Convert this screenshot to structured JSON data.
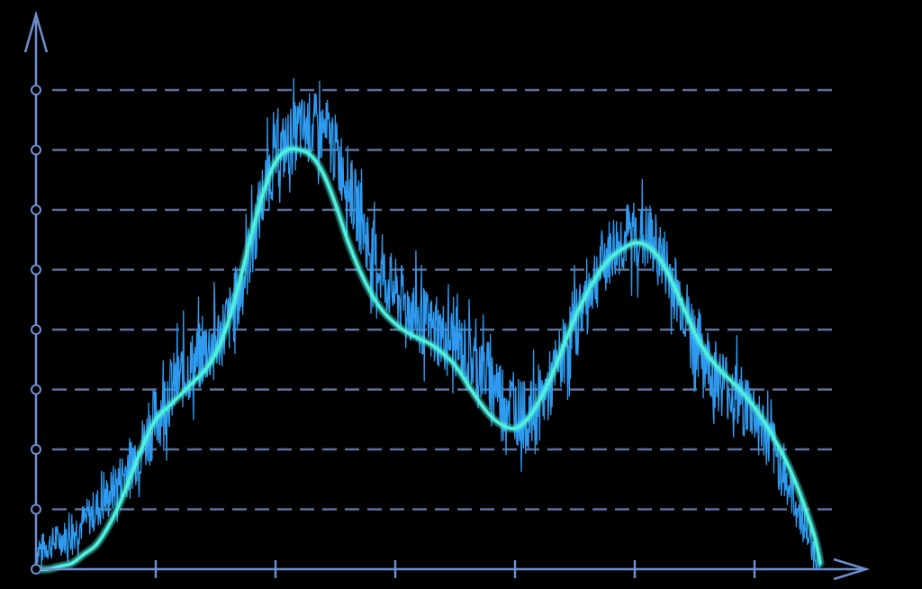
{
  "chart_data": {
    "type": "line",
    "title": "",
    "xlabel": "",
    "ylabel": "",
    "xlim": [
      0,
      6.5
    ],
    "ylim": [
      0,
      8
    ],
    "grid": true,
    "x_ticks": [
      1,
      2,
      3,
      4,
      5,
      6
    ],
    "y_ticks": [
      1,
      2,
      3,
      4,
      5,
      6,
      7,
      8
    ],
    "series": [
      {
        "style": "noisy",
        "color": "#2f9bf0",
        "noise_amplitude": 0.6,
        "x": [
          0.0,
          0.1,
          0.2,
          0.3,
          0.4,
          0.5,
          0.6,
          0.7,
          0.8,
          0.9,
          1.0,
          1.1,
          1.2,
          1.3,
          1.4,
          1.5,
          1.6,
          1.7,
          1.8,
          1.9,
          2.0,
          2.1,
          2.2,
          2.3,
          2.4,
          2.5,
          2.6,
          2.7,
          2.8,
          2.9,
          3.0,
          3.1,
          3.2,
          3.3,
          3.4,
          3.5,
          3.6,
          3.7,
          3.8,
          3.9,
          4.0,
          4.1,
          4.2,
          4.3,
          4.4,
          4.5,
          4.6,
          4.7,
          4.8,
          4.9,
          5.0,
          5.1,
          5.2,
          5.3,
          5.4,
          5.5,
          5.6,
          5.7,
          5.8,
          5.9,
          6.0,
          6.1,
          6.2,
          6.3,
          6.4,
          6.5,
          6.55
        ],
        "y": [
          0.3,
          0.4,
          0.5,
          0.6,
          0.8,
          1.0,
          1.2,
          1.5,
          1.8,
          2.1,
          2.5,
          2.9,
          3.2,
          3.4,
          3.6,
          3.8,
          4.1,
          4.6,
          5.4,
          6.3,
          6.9,
          7.1,
          7.3,
          7.4,
          7.3,
          7.0,
          6.5,
          5.9,
          5.3,
          4.9,
          4.6,
          4.4,
          4.2,
          4.0,
          3.9,
          3.8,
          3.6,
          3.4,
          3.2,
          2.9,
          2.7,
          2.5,
          2.7,
          3.1,
          3.6,
          4.1,
          4.6,
          5.0,
          5.3,
          5.5,
          5.6,
          5.5,
          5.3,
          4.9,
          4.4,
          3.9,
          3.5,
          3.2,
          3.0,
          2.8,
          2.6,
          2.2,
          1.8,
          1.3,
          0.8,
          0.3,
          0.0
        ]
      },
      {
        "style": "smooth",
        "color": "#4ff0e0",
        "x": [
          0.0,
          0.1,
          0.2,
          0.3,
          0.4,
          0.5,
          0.6,
          0.7,
          0.8,
          0.9,
          1.0,
          1.1,
          1.2,
          1.3,
          1.4,
          1.5,
          1.6,
          1.7,
          1.8,
          1.9,
          2.0,
          2.1,
          2.2,
          2.3,
          2.4,
          2.5,
          2.6,
          2.7,
          2.8,
          2.9,
          3.0,
          3.1,
          3.2,
          3.3,
          3.4,
          3.5,
          3.6,
          3.7,
          3.8,
          3.9,
          4.0,
          4.1,
          4.2,
          4.3,
          4.4,
          4.5,
          4.6,
          4.7,
          4.8,
          4.9,
          5.0,
          5.1,
          5.2,
          5.3,
          5.4,
          5.5,
          5.6,
          5.7,
          5.8,
          5.9,
          6.0,
          6.1,
          6.2,
          6.3,
          6.4,
          6.5,
          6.55
        ],
        "y": [
          0.0,
          0.0,
          0.05,
          0.1,
          0.25,
          0.4,
          0.7,
          1.1,
          1.6,
          2.1,
          2.5,
          2.7,
          2.9,
          3.1,
          3.3,
          3.6,
          4.1,
          4.8,
          5.6,
          6.3,
          6.8,
          7.0,
          7.0,
          6.9,
          6.6,
          6.1,
          5.5,
          5.0,
          4.6,
          4.3,
          4.1,
          3.95,
          3.85,
          3.75,
          3.6,
          3.4,
          3.1,
          2.8,
          2.55,
          2.4,
          2.35,
          2.5,
          2.8,
          3.2,
          3.7,
          4.2,
          4.6,
          4.95,
          5.2,
          5.35,
          5.45,
          5.4,
          5.2,
          4.85,
          4.4,
          3.95,
          3.6,
          3.35,
          3.15,
          2.95,
          2.7,
          2.4,
          2.05,
          1.65,
          1.15,
          0.55,
          0.1
        ]
      }
    ]
  }
}
